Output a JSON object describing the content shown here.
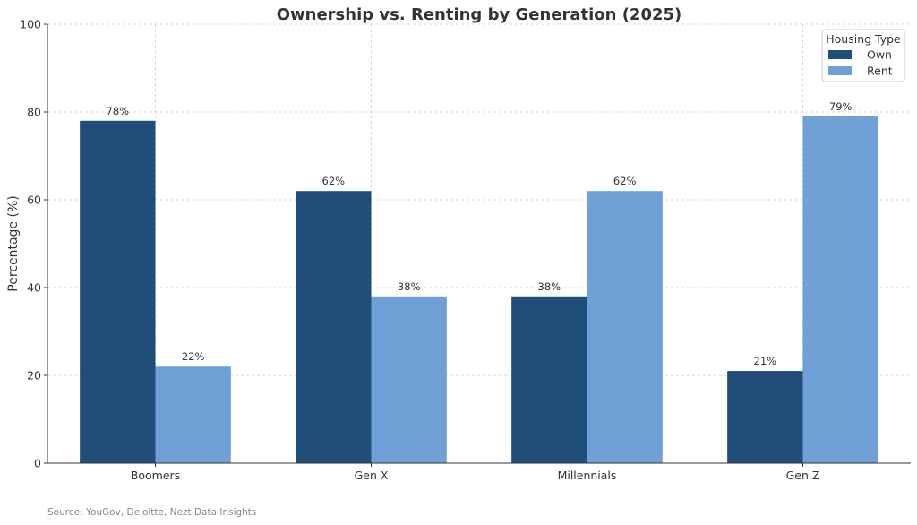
{
  "chart_data": {
    "type": "bar",
    "title": "Ownership vs. Renting by Generation (2025)",
    "xlabel": "",
    "ylabel": "Percentage (%)",
    "ylim": [
      0,
      100
    ],
    "yticks": [
      0,
      20,
      40,
      60,
      80,
      100
    ],
    "categories": [
      "Boomers",
      "Gen X",
      "Millennials",
      "Gen Z"
    ],
    "series": [
      {
        "name": "Own",
        "values": [
          78,
          62,
          38,
          21
        ],
        "color": "#1f4e79"
      },
      {
        "name": "Rent",
        "values": [
          22,
          38,
          62,
          79
        ],
        "color": "#6fa1d6"
      }
    ],
    "value_label_suffix": "%",
    "legend": {
      "title": "Housing Type",
      "position": "top-right"
    },
    "grid": true
  },
  "source": "Source: YouGov, Deloitte, Nezt Data Insights"
}
